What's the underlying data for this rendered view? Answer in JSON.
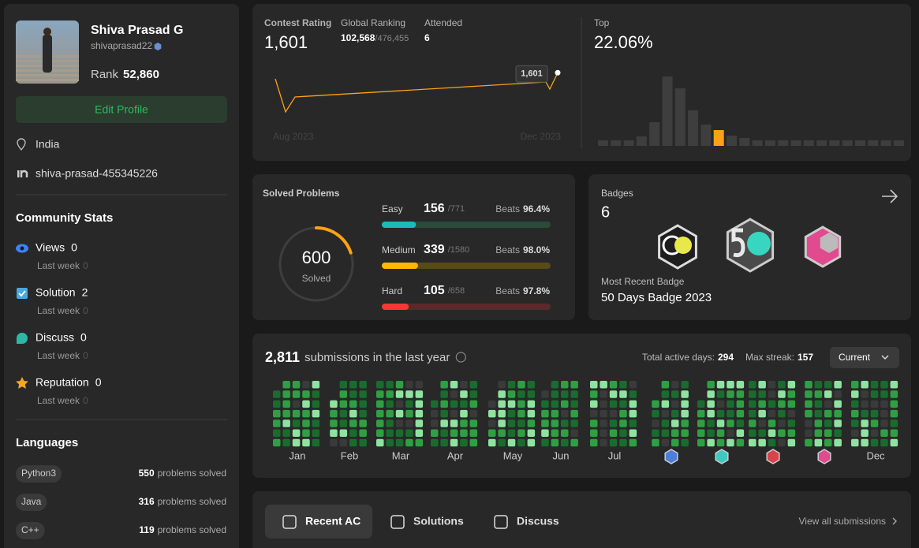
{
  "profile": {
    "name": "Shiva Prasad G",
    "username": "shivaprasad22",
    "rank_label": "Rank",
    "rank": "52,860",
    "edit_button": "Edit Profile",
    "location": "India",
    "linkedin": "shiva-prasad-455345226"
  },
  "community_stats": {
    "title": "Community Stats",
    "items": [
      {
        "label": "Views",
        "value": 0,
        "period": "Last week",
        "change": 0
      },
      {
        "label": "Solution",
        "value": 2,
        "period": "Last week",
        "change": 0
      },
      {
        "label": "Discuss",
        "value": 0,
        "period": "Last week",
        "change": 0
      },
      {
        "label": "Reputation",
        "value": 0,
        "period": "Last week",
        "change": 0
      }
    ]
  },
  "languages": {
    "title": "Languages",
    "items": [
      {
        "name": "Python3",
        "solved": 550,
        "unit": "problems solved"
      },
      {
        "name": "Java",
        "solved": 316,
        "unit": "problems solved"
      },
      {
        "name": "C++",
        "solved": 119,
        "unit": "problems solved"
      }
    ]
  },
  "contest": {
    "rating_label": "Contest Rating",
    "rating": "1,601",
    "ranking_label": "Global Ranking",
    "ranking": "102,568",
    "ranking_total": "/476,455",
    "attended_label": "Attended",
    "attended": 6,
    "history": {
      "type": "line",
      "values": [
        1570,
        1402,
        1478,
        1554,
        1518,
        1601
      ],
      "ylim": [
        1390,
        1610
      ],
      "labels": [
        "Aug 2023",
        "Dec 2023"
      ],
      "tooltip": "1,601",
      "color": "#ffa116"
    },
    "top_label": "Top",
    "top": "22.06%",
    "distribution": {
      "type": "bar",
      "values": [
        7,
        7,
        7,
        12,
        30,
        88,
        73,
        45,
        27,
        20,
        13,
        10,
        7,
        7,
        7,
        7,
        7,
        7,
        7,
        7,
        7,
        7,
        7,
        7
      ],
      "highlight": 9,
      "color": "#3e3e3e",
      "highlight_color": "#ffa116"
    }
  },
  "solved": {
    "title": "Solved Problems",
    "total": 600,
    "total_label": "Solved",
    "levels": [
      {
        "name": "Easy",
        "solved": 156,
        "total": 771,
        "total_label": "/771",
        "beats_label": "Beats",
        "beats": "96.4%",
        "color": "#1cbaba",
        "track": "#2a4a3a"
      },
      {
        "name": "Medium",
        "solved": 339,
        "total": 1580,
        "total_label": "/1580",
        "beats_label": "Beats",
        "beats": "98.0%",
        "color": "#ffb800",
        "track": "#5a4a1a"
      },
      {
        "name": "Hard",
        "solved": 105,
        "total": 658,
        "total_label": "/658",
        "beats_label": "Beats",
        "beats": "97.8%",
        "color": "#f63737",
        "track": "#5a2a2a"
      }
    ]
  },
  "badges": {
    "title": "Badges",
    "count": 6,
    "recent_label": "Most Recent Badge",
    "recent": "50 Days Badge 2023"
  },
  "submissions": {
    "count": "2,811",
    "label": "submissions in the last year",
    "active_label": "Total active days:",
    "active": 294,
    "streak_label": "Max streak:",
    "streak": 157,
    "filter": "Current",
    "months": [
      "Jan",
      "Feb",
      "Mar",
      "Apr",
      "May",
      "Jun",
      "Jul",
      null,
      null,
      null,
      null,
      "Dec"
    ]
  },
  "tabs": {
    "items": [
      "Recent AC",
      "Solutions",
      "Discuss"
    ],
    "view_all": "View all submissions"
  }
}
